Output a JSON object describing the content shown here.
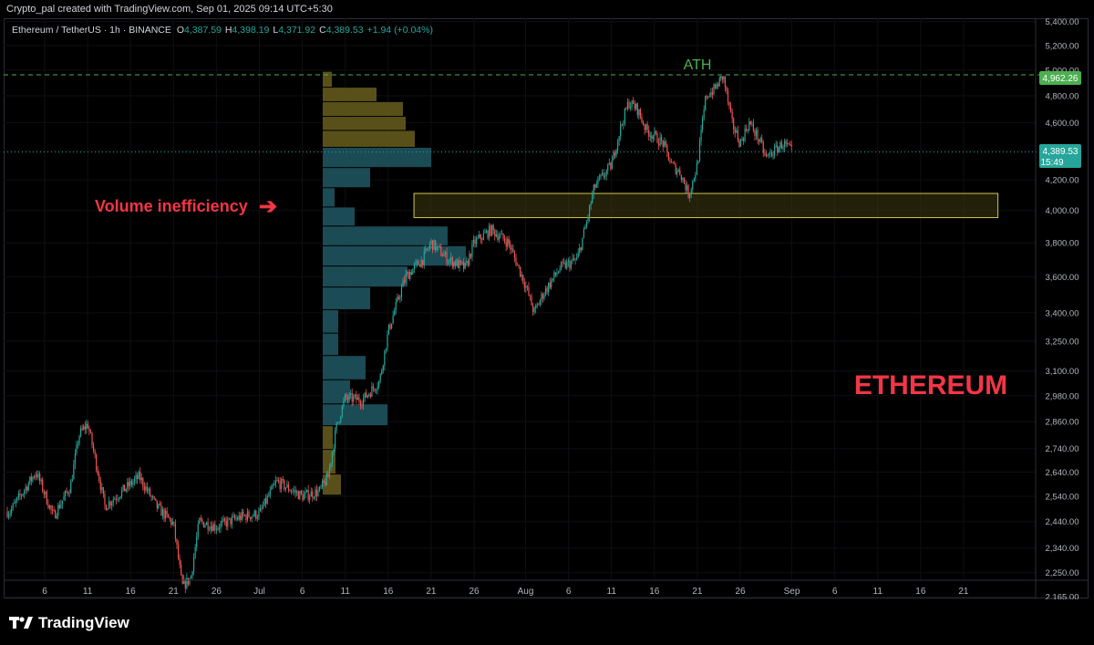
{
  "header": {
    "credit": "Crypto_pal created with TradingView.com, Sep 01, 2025 09:14 UTC+5:30"
  },
  "legend": {
    "symbol": "Ethereum / TetherUS · 1h · BINANCE",
    "o_label": "O",
    "o_value": "4,387.59",
    "h_label": "H",
    "h_value": "4,398.19",
    "l_label": "L",
    "l_value": "4,371.92",
    "c_label": "C",
    "c_value": "4,389.53",
    "change": "+1.94 (+0.04%)"
  },
  "annotations": {
    "ath": "ATH",
    "volume_inefficiency": "Volume inefficiency",
    "arrow": "➔",
    "watermark": "ETHEREUM"
  },
  "price_scale": {
    "ath_tag": "4,962.26",
    "last_price_tag": "4,389.53",
    "countdown": "15:49"
  },
  "branding": {
    "logo_text": "TradingView"
  },
  "colors": {
    "background": "#000000",
    "up": "#26a69a",
    "down": "#ef5350",
    "ath_line": "#4caf50",
    "vp_upper": "#595019",
    "vp_value_area": "#1b4b55",
    "zone_fill": "#3a3610",
    "zone_stroke": "#d4c54a",
    "annotation_red": "#f23645",
    "ath_text": "#4caf50"
  },
  "chart_data": {
    "type": "candlestick",
    "symbol": "ETHUSDT",
    "interval": "1h",
    "x_ticks": [
      "6",
      "11",
      "16",
      "21",
      "26",
      "Jul",
      "6",
      "11",
      "16",
      "21",
      "26",
      "Aug",
      "6",
      "11",
      "16",
      "21",
      "26",
      "Sep",
      "6",
      "11",
      "16",
      "21"
    ],
    "y_ticks": [
      "5,400.00",
      "5,200.00",
      "5,000.00",
      "4,800.00",
      "4,600.00",
      "4,400.00",
      "4,200.00",
      "4,000.00",
      "3,800.00",
      "3,600.00",
      "3,400.00",
      "3,250.00",
      "3,100.00",
      "2,980.00",
      "2,860.00",
      "2,740.00",
      "2,640.00",
      "2,540.00",
      "2,440.00",
      "2,340.00",
      "2,250.00",
      "2,165.00"
    ],
    "y_values": [
      5400,
      5200,
      5000,
      4800,
      4600,
      4400,
      4200,
      4000,
      3800,
      3600,
      3400,
      3250,
      3100,
      2980,
      2860,
      2740,
      2640,
      2540,
      2440,
      2340,
      2250,
      2165
    ],
    "y_scale": "log",
    "ath": 4962.26,
    "last_price": 4389.53,
    "close_path": [
      {
        "d": "2025-06-02",
        "p": 2480
      },
      {
        "d": "2025-06-05",
        "p": 2640
      },
      {
        "d": "2025-06-07",
        "p": 2460
      },
      {
        "d": "2025-06-09",
        "p": 2580
      },
      {
        "d": "2025-06-10",
        "p": 2800
      },
      {
        "d": "2025-06-11",
        "p": 2850
      },
      {
        "d": "2025-06-13",
        "p": 2500
      },
      {
        "d": "2025-06-15",
        "p": 2560
      },
      {
        "d": "2025-06-17",
        "p": 2620
      },
      {
        "d": "2025-06-19",
        "p": 2500
      },
      {
        "d": "2025-06-21",
        "p": 2430
      },
      {
        "d": "2025-06-22",
        "p": 2200
      },
      {
        "d": "2025-06-23",
        "p": 2230
      },
      {
        "d": "2025-06-24",
        "p": 2440
      },
      {
        "d": "2025-06-26",
        "p": 2420
      },
      {
        "d": "2025-06-29",
        "p": 2460
      },
      {
        "d": "2025-07-01",
        "p": 2470
      },
      {
        "d": "2025-07-03",
        "p": 2600
      },
      {
        "d": "2025-07-06",
        "p": 2540
      },
      {
        "d": "2025-07-08",
        "p": 2560
      },
      {
        "d": "2025-07-09",
        "p": 2620
      },
      {
        "d": "2025-07-10",
        "p": 2840
      },
      {
        "d": "2025-07-11",
        "p": 2970
      },
      {
        "d": "2025-07-13",
        "p": 2960
      },
      {
        "d": "2025-07-15",
        "p": 3050
      },
      {
        "d": "2025-07-16",
        "p": 3300
      },
      {
        "d": "2025-07-17",
        "p": 3450
      },
      {
        "d": "2025-07-18",
        "p": 3600
      },
      {
        "d": "2025-07-20",
        "p": 3700
      },
      {
        "d": "2025-07-21",
        "p": 3800
      },
      {
        "d": "2025-07-23",
        "p": 3700
      },
      {
        "d": "2025-07-25",
        "p": 3650
      },
      {
        "d": "2025-07-26",
        "p": 3800
      },
      {
        "d": "2025-07-28",
        "p": 3880
      },
      {
        "d": "2025-07-30",
        "p": 3800
      },
      {
        "d": "2025-08-01",
        "p": 3550
      },
      {
        "d": "2025-08-02",
        "p": 3400
      },
      {
        "d": "2025-08-03",
        "p": 3500
      },
      {
        "d": "2025-08-05",
        "p": 3650
      },
      {
        "d": "2025-08-07",
        "p": 3700
      },
      {
        "d": "2025-08-08",
        "p": 3900
      },
      {
        "d": "2025-08-09",
        "p": 4150
      },
      {
        "d": "2025-08-11",
        "p": 4300
      },
      {
        "d": "2025-08-12",
        "p": 4550
      },
      {
        "d": "2025-08-13",
        "p": 4750
      },
      {
        "d": "2025-08-14",
        "p": 4700
      },
      {
        "d": "2025-08-15",
        "p": 4550
      },
      {
        "d": "2025-08-17",
        "p": 4450
      },
      {
        "d": "2025-08-18",
        "p": 4300
      },
      {
        "d": "2025-08-19",
        "p": 4250
      },
      {
        "d": "2025-08-20",
        "p": 4100
      },
      {
        "d": "2025-08-21",
        "p": 4300
      },
      {
        "d": "2025-08-22",
        "p": 4800
      },
      {
        "d": "2025-08-23",
        "p": 4850
      },
      {
        "d": "2025-08-24",
        "p": 4955
      },
      {
        "d": "2025-08-25",
        "p": 4600
      },
      {
        "d": "2025-08-26",
        "p": 4450
      },
      {
        "d": "2025-08-27",
        "p": 4600
      },
      {
        "d": "2025-08-28",
        "p": 4500
      },
      {
        "d": "2025-08-29",
        "p": 4350
      },
      {
        "d": "2025-08-30",
        "p": 4400
      },
      {
        "d": "2025-08-31",
        "p": 4450
      },
      {
        "d": "2025-09-01",
        "p": 4389.53
      }
    ],
    "volume_profile": [
      {
        "price": 4915,
        "volume": 10,
        "area": "upper"
      },
      {
        "price": 4810,
        "volume": 59,
        "area": "upper"
      },
      {
        "price": 4695,
        "volume": 88,
        "area": "upper"
      },
      {
        "price": 4590,
        "volume": 91,
        "area": "upper"
      },
      {
        "price": 4490,
        "volume": 101,
        "area": "upper"
      },
      {
        "price": 4350,
        "volume": 119,
        "area": "value"
      },
      {
        "price": 4210,
        "volume": 52,
        "area": "value"
      },
      {
        "price": 4080,
        "volume": 13,
        "area": "value"
      },
      {
        "price": 3960,
        "volume": 35,
        "area": "value"
      },
      {
        "price": 3840,
        "volume": 137,
        "area": "value"
      },
      {
        "price": 3720,
        "volume": 157,
        "area": "value"
      },
      {
        "price": 3600,
        "volume": 93,
        "area": "value"
      },
      {
        "price": 3480,
        "volume": 52,
        "area": "value"
      },
      {
        "price": 3350,
        "volume": 17,
        "area": "value"
      },
      {
        "price": 3230,
        "volume": 17,
        "area": "value"
      },
      {
        "price": 3120,
        "volume": 47,
        "area": "value"
      },
      {
        "price": 2990,
        "volume": 30,
        "area": "value"
      },
      {
        "price": 2890,
        "volume": 71,
        "area": "value"
      },
      {
        "price": 2790,
        "volume": 11,
        "area": "upper"
      },
      {
        "price": 2680,
        "volume": 14,
        "area": "upper"
      },
      {
        "price": 2580,
        "volume": 20,
        "area": "upper"
      }
    ],
    "zone": {
      "low": 3955,
      "high": 4110,
      "start": "2025-07-19",
      "end": "2025-09-25"
    }
  }
}
